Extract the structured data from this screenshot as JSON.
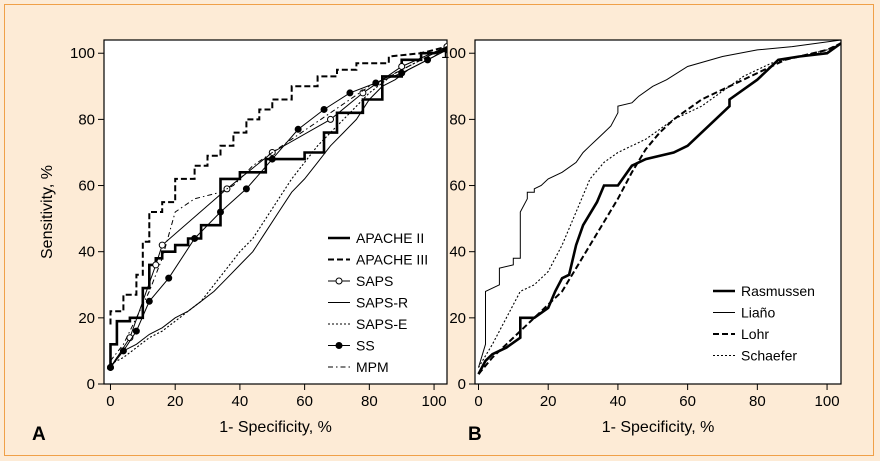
{
  "colors": {
    "background": "#fdebd6",
    "border": "#f0a048",
    "plot_area": "#ffffff",
    "ink": "#000000"
  },
  "chart_data": [
    {
      "type": "line",
      "panel": "A",
      "xlabel": "1- Specificity, %",
      "ylabel": "Sensitivity, %",
      "xlim": [
        -2,
        104
      ],
      "ylim": [
        0,
        104
      ],
      "xticks": [
        0,
        20,
        40,
        60,
        80,
        100
      ],
      "yticks": [
        0,
        20,
        40,
        60,
        80,
        100
      ],
      "grid": false,
      "legend_position": "bottom-right",
      "series": [
        {
          "name": "APACHE II",
          "style": "thick",
          "markers": false,
          "x": [
            0,
            0,
            2,
            2,
            6,
            6,
            10,
            10,
            12,
            12,
            14,
            14,
            16,
            16,
            20,
            20,
            24,
            24,
            28,
            28,
            34,
            34,
            40,
            40,
            48,
            48,
            60,
            60,
            66,
            66,
            70,
            70,
            78,
            78,
            84,
            84,
            90,
            90,
            96,
            96,
            100,
            104
          ],
          "y": [
            5,
            12,
            12,
            19,
            19,
            20,
            20,
            29,
            29,
            36,
            36,
            38,
            38,
            40,
            40,
            42,
            42,
            44,
            44,
            48,
            48,
            62,
            62,
            64,
            64,
            68,
            68,
            70,
            70,
            76,
            76,
            82,
            82,
            86,
            86,
            93,
            93,
            98,
            98,
            100,
            100,
            101
          ]
        },
        {
          "name": "APACHE III",
          "style": "dashed",
          "markers": false,
          "x": [
            0,
            0,
            4,
            4,
            8,
            8,
            10,
            10,
            12,
            12,
            16,
            16,
            20,
            20,
            26,
            26,
            30,
            30,
            34,
            34,
            38,
            38,
            42,
            42,
            46,
            46,
            50,
            50,
            56,
            56,
            64,
            64,
            70,
            70,
            76,
            76,
            86,
            86,
            96,
            104
          ],
          "y": [
            18,
            22,
            22,
            27,
            27,
            33,
            33,
            43,
            43,
            52,
            52,
            55,
            55,
            62,
            62,
            66,
            66,
            69,
            69,
            72,
            72,
            76,
            76,
            80,
            80,
            83,
            83,
            86,
            86,
            90,
            90,
            93,
            93,
            95,
            95,
            97,
            97,
            99,
            100,
            102
          ]
        },
        {
          "name": "SAPS",
          "style": "thin",
          "markers": "open-circle",
          "x": [
            0,
            6,
            14,
            16,
            36,
            50,
            68,
            78,
            90,
            104
          ],
          "y": [
            5,
            14,
            36,
            42,
            59,
            70,
            80,
            88,
            96,
            102
          ]
        },
        {
          "name": "SAPS-R",
          "style": "thin",
          "markers": false,
          "x": [
            0,
            2,
            4,
            8,
            12,
            16,
            20,
            24,
            28,
            32,
            36,
            40,
            44,
            48,
            52,
            56,
            60,
            64,
            68,
            72,
            76,
            80,
            84,
            88,
            92,
            96,
            100,
            104
          ],
          "y": [
            5,
            8,
            10,
            12,
            15,
            17,
            20,
            22,
            25,
            28,
            32,
            36,
            40,
            46,
            52,
            58,
            62,
            67,
            72,
            76,
            80,
            86,
            90,
            92,
            95,
            97,
            99,
            102
          ]
        },
        {
          "name": "SAPS-E",
          "style": "dotted",
          "markers": false,
          "x": [
            0,
            4,
            8,
            12,
            16,
            20,
            24,
            28,
            32,
            36,
            40,
            44,
            48,
            52,
            56,
            60,
            64,
            68,
            72,
            76,
            80,
            84,
            88,
            92,
            96,
            100,
            104
          ],
          "y": [
            6,
            8,
            11,
            14,
            16,
            19,
            22,
            25,
            30,
            35,
            40,
            44,
            50,
            56,
            62,
            67,
            72,
            76,
            80,
            84,
            88,
            91,
            94,
            96,
            98,
            100,
            102
          ]
        },
        {
          "name": "SS",
          "style": "thin",
          "markers": "filled-circle",
          "x": [
            0,
            4,
            8,
            12,
            18,
            26,
            34,
            42,
            50,
            58,
            66,
            74,
            82,
            90,
            98,
            104
          ],
          "y": [
            5,
            10,
            16,
            25,
            32,
            44,
            52,
            59,
            68,
            77,
            83,
            88,
            91,
            94,
            98,
            101
          ]
        },
        {
          "name": "MPM",
          "style": "dash-dot",
          "markers": false,
          "x": [
            0,
            4,
            8,
            12,
            16,
            20,
            26,
            34,
            38,
            40,
            44,
            50,
            56,
            62,
            68,
            74,
            80,
            86,
            92,
            98,
            104
          ],
          "y": [
            7,
            12,
            20,
            28,
            38,
            52,
            56,
            58,
            60,
            62,
            66,
            70,
            74,
            78,
            82,
            86,
            90,
            93,
            96,
            99,
            102
          ]
        }
      ]
    },
    {
      "type": "line",
      "panel": "B",
      "xlabel": "1- Specificity, %",
      "ylabel": "",
      "xlim": [
        -1,
        104
      ],
      "ylim": [
        0,
        104
      ],
      "xticks": [
        0,
        20,
        40,
        60,
        80,
        100
      ],
      "yticks": [
        0,
        20,
        40,
        60,
        80,
        100
      ],
      "grid": false,
      "legend_position": "bottom-right",
      "series": [
        {
          "name": "Rasmussen",
          "style": "thick",
          "markers": false,
          "x": [
            0,
            2,
            4,
            8,
            12,
            12,
            16,
            20,
            22,
            24,
            26,
            28,
            30,
            34,
            36,
            40,
            44,
            48,
            56,
            60,
            64,
            68,
            72,
            72,
            80,
            86,
            92,
            100,
            104
          ],
          "y": [
            3,
            7,
            9,
            11,
            14,
            20,
            20,
            23,
            28,
            32,
            33,
            42,
            48,
            55,
            60,
            60,
            66,
            68,
            70,
            72,
            76,
            80,
            84,
            86,
            92,
            98,
            99,
            100,
            103
          ]
        },
        {
          "name": "Liaño",
          "style": "thin",
          "markers": false,
          "x": [
            0,
            2,
            2,
            6,
            6,
            10,
            10,
            12,
            12,
            14,
            14,
            16,
            16,
            18,
            20,
            24,
            28,
            30,
            32,
            34,
            36,
            38,
            40,
            40,
            44,
            46,
            50,
            54,
            60,
            70,
            80,
            90,
            104
          ],
          "y": [
            5,
            12,
            28,
            30,
            35,
            36,
            38,
            38,
            52,
            56,
            58,
            58,
            59,
            60,
            62,
            64,
            67,
            70,
            72,
            74,
            76,
            78,
            82,
            84,
            85,
            87,
            90,
            92,
            96,
            99,
            101,
            102,
            104
          ]
        },
        {
          "name": "Lohr",
          "style": "dashed",
          "markers": false,
          "x": [
            0,
            4,
            8,
            12,
            16,
            20,
            24,
            28,
            32,
            36,
            40,
            44,
            48,
            52,
            56,
            60,
            64,
            68,
            72,
            76,
            80,
            84,
            88,
            92,
            96,
            100,
            104
          ],
          "y": [
            3,
            8,
            12,
            16,
            20,
            24,
            28,
            35,
            42,
            49,
            56,
            64,
            71,
            76,
            80,
            83,
            86,
            88,
            90,
            92,
            94,
            96,
            98,
            99,
            100,
            101,
            103
          ]
        },
        {
          "name": "Schaefer",
          "style": "dotted",
          "markers": false,
          "x": [
            0,
            4,
            8,
            12,
            16,
            20,
            24,
            28,
            32,
            36,
            40,
            44,
            48,
            52,
            56,
            60,
            64,
            68,
            72,
            76,
            80,
            84,
            88,
            92,
            96,
            100,
            104
          ],
          "y": [
            5,
            12,
            20,
            28,
            30,
            34,
            42,
            52,
            62,
            67,
            70,
            72,
            74,
            77,
            80,
            82,
            84,
            87,
            90,
            93,
            95,
            97,
            98,
            99,
            100,
            101,
            103
          ]
        }
      ]
    }
  ]
}
